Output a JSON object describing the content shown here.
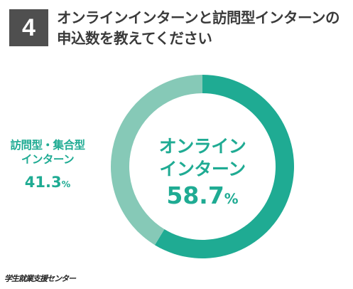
{
  "question_number": "4",
  "title_lines": [
    "オンラインインターンと訪問型インターンの",
    "申込数を教えてください"
  ],
  "source": "学生就業支援センター",
  "colors": {
    "online": "#1fab93",
    "onsite": "#86c9b7",
    "badge": "#4f4f4f"
  },
  "chart_data": {
    "type": "pie",
    "variant": "donut",
    "title": "オンラインインターンと訪問型インターンの申込数を教えてください",
    "slices": [
      {
        "name": "オンラインインターン",
        "label_lines": [
          "オンライン",
          "インターン"
        ],
        "value": 58.7,
        "display": "58.7",
        "unit": "%",
        "color": "#1fab93"
      },
      {
        "name": "訪問型・集合型インターン",
        "label_lines": [
          "訪問型・集合型",
          "インターン"
        ],
        "value": 41.3,
        "display": "41.3",
        "unit": "%",
        "color": "#86c9b7"
      }
    ]
  }
}
